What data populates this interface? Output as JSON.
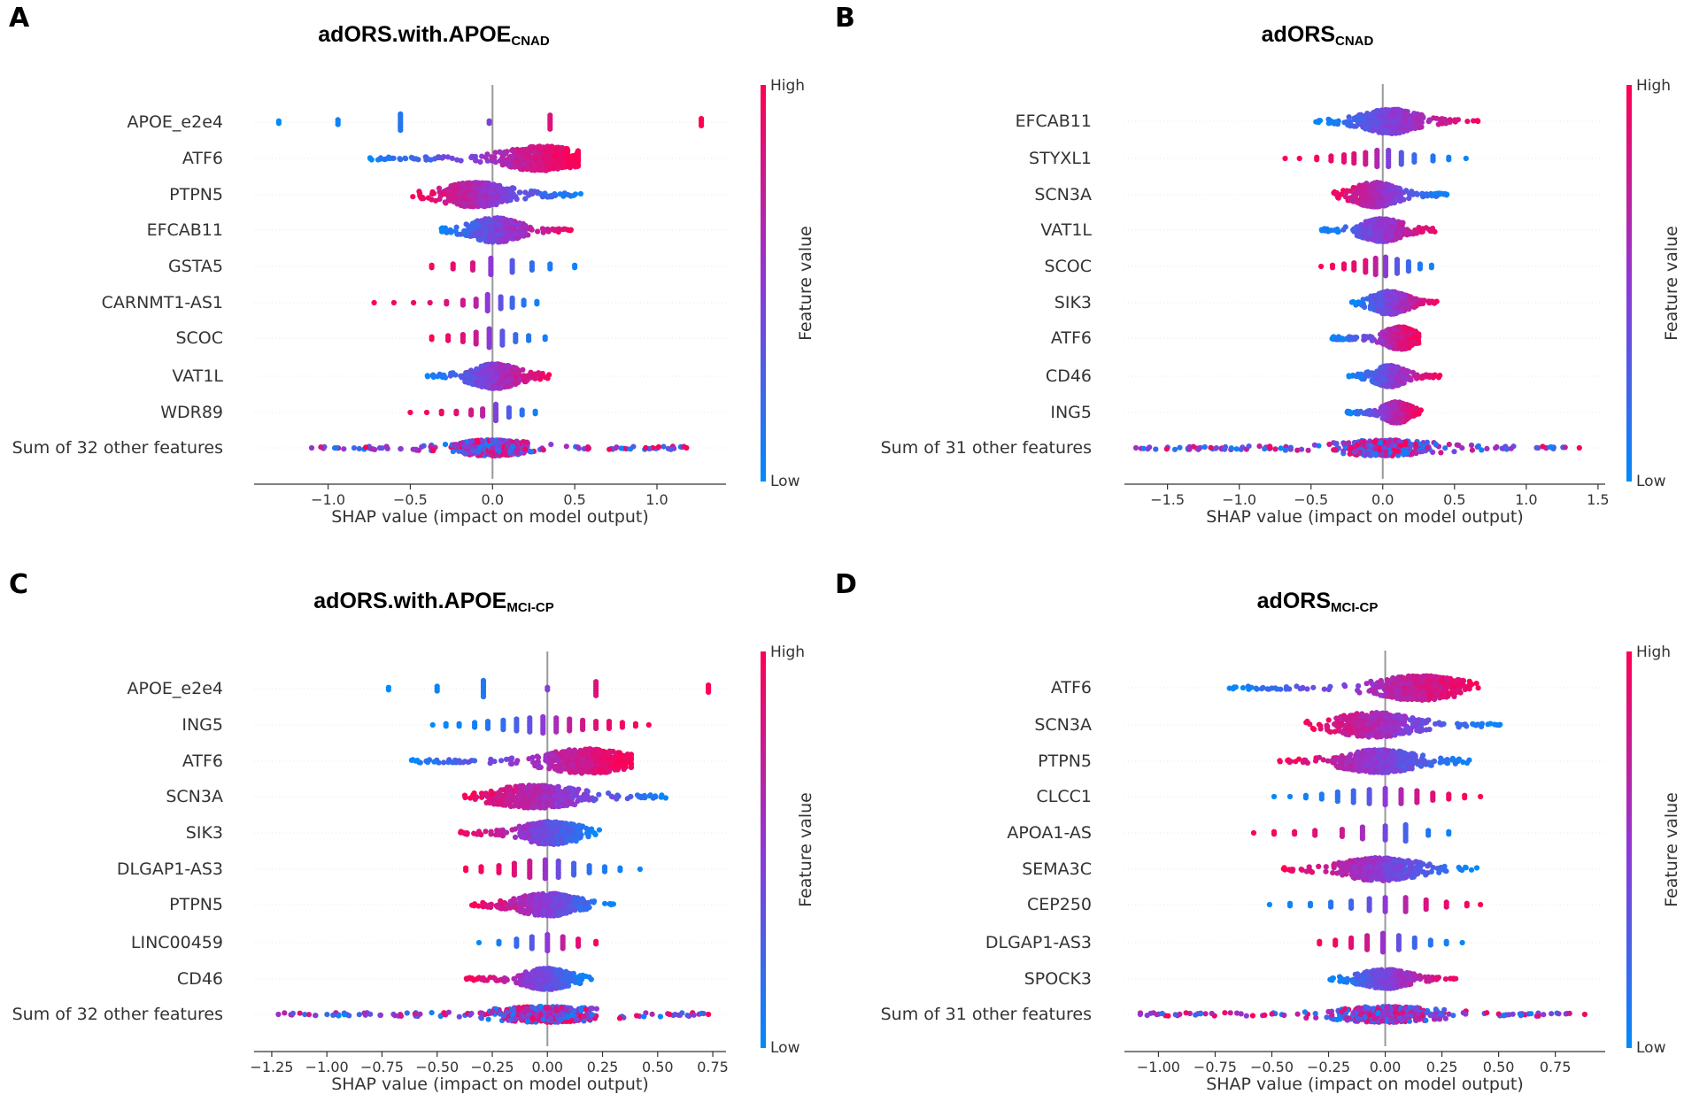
{
  "chart_data": [
    {
      "type": "scatter",
      "panel": "A",
      "title": "adORS.with.APOE",
      "title_subscript": "CNAD",
      "xlabel": "SHAP value (impact on model output)",
      "xlim": [
        -1.45,
        1.42
      ],
      "xticks": [
        -1.0,
        -0.5,
        0.0,
        0.5,
        1.0
      ],
      "xtick_labels": [
        "−1.0",
        "−0.5",
        "0.0",
        "0.5",
        "1.0"
      ],
      "colorbar": {
        "label": "Feature value",
        "high": "High",
        "low": "Low"
      },
      "features": [
        {
          "name": "APOE_e2e4",
          "kind": "discrete",
          "values": [
            -1.3,
            -0.94,
            -0.56,
            -0.02,
            0.35,
            1.27
          ],
          "colors": [
            0.0,
            0.05,
            0.12,
            0.45,
            0.85,
            1.0
          ],
          "heights": [
            2,
            3,
            8,
            2,
            7,
            4
          ]
        },
        {
          "name": "ATF6",
          "kind": "continuous",
          "min": -0.75,
          "max": 0.52,
          "lo_end": "low",
          "peak": 0.3,
          "spread": 0.35,
          "height": 14
        },
        {
          "name": "PTPN5",
          "kind": "continuous",
          "min": -0.49,
          "max": 0.54,
          "lo_end": "high",
          "peak": -0.1,
          "spread": 0.3,
          "height": 14
        },
        {
          "name": "EFCAB11",
          "kind": "continuous",
          "min": -0.33,
          "max": 0.49,
          "lo_end": "low",
          "peak": 0.02,
          "spread": 0.22,
          "height": 14
        },
        {
          "name": "GSTA5",
          "kind": "discrete",
          "values": [
            -0.37,
            -0.24,
            -0.12,
            -0.01,
            0.12,
            0.24,
            0.35,
            0.5
          ],
          "colors": [
            1.0,
            0.92,
            0.82,
            0.5,
            0.3,
            0.18,
            0.1,
            0.05
          ],
          "heights": [
            2,
            3,
            4,
            8,
            6,
            4,
            3,
            2
          ]
        },
        {
          "name": "CARNMT1-AS1",
          "kind": "discrete",
          "values": [
            -0.72,
            -0.6,
            -0.48,
            -0.38,
            -0.28,
            -0.18,
            -0.1,
            -0.03,
            0.05,
            0.12,
            0.19,
            0.27
          ],
          "colors": [
            1.0,
            0.97,
            0.93,
            0.9,
            0.85,
            0.78,
            0.68,
            0.5,
            0.35,
            0.22,
            0.12,
            0.06
          ],
          "heights": [
            1,
            1,
            1,
            1,
            2,
            3,
            4,
            8,
            6,
            5,
            3,
            2
          ]
        },
        {
          "name": "SCOC",
          "kind": "discrete",
          "values": [
            -0.37,
            -0.27,
            -0.18,
            -0.1,
            -0.02,
            0.06,
            0.14,
            0.22,
            0.32
          ],
          "colors": [
            1.0,
            0.93,
            0.86,
            0.76,
            0.5,
            0.32,
            0.2,
            0.12,
            0.06
          ],
          "heights": [
            2,
            3,
            4,
            6,
            9,
            7,
            4,
            3,
            2
          ]
        },
        {
          "name": "VAT1L",
          "kind": "continuous",
          "min": -0.4,
          "max": 0.37,
          "lo_end": "low",
          "peak": 0.02,
          "spread": 0.22,
          "height": 14
        },
        {
          "name": "WDR89",
          "kind": "discrete",
          "values": [
            -0.5,
            -0.4,
            -0.31,
            -0.22,
            -0.13,
            -0.06,
            0.02,
            0.1,
            0.18,
            0.26
          ],
          "colors": [
            1.0,
            0.97,
            0.93,
            0.88,
            0.8,
            0.7,
            0.45,
            0.28,
            0.15,
            0.06
          ],
          "heights": [
            1,
            1,
            2,
            2,
            3,
            4,
            8,
            5,
            3,
            2
          ]
        },
        {
          "name": "Sum of 32 other features",
          "kind": "mixed",
          "min": -1.1,
          "max": 1.18,
          "spread": 0.3,
          "height": 9
        }
      ]
    },
    {
      "type": "scatter",
      "panel": "B",
      "title": "adORS",
      "title_subscript": "CNAD",
      "xlabel": "SHAP value (impact on model output)",
      "xlim": [
        -1.8,
        1.55
      ],
      "xticks": [
        -1.5,
        -1.0,
        -0.5,
        0.0,
        0.5,
        1.0,
        1.5
      ],
      "xtick_labels": [
        "−1.5",
        "−1.0",
        "−0.5",
        "0.0",
        "0.5",
        "1.0",
        "1.5"
      ],
      "colorbar": {
        "label": "Feature value",
        "high": "High",
        "low": "Low"
      },
      "features": [
        {
          "name": "EFCAB11",
          "kind": "continuous",
          "min": -0.48,
          "max": 0.7,
          "lo_end": "low",
          "peak": 0.05,
          "spread": 0.28,
          "height": 14
        },
        {
          "name": "STYXL1",
          "kind": "discrete",
          "values": [
            -0.68,
            -0.58,
            -0.46,
            -0.36,
            -0.27,
            -0.2,
            -0.12,
            -0.04,
            0.04,
            0.13,
            0.22,
            0.35,
            0.46,
            0.58
          ],
          "colors": [
            1.0,
            0.98,
            0.95,
            0.92,
            0.88,
            0.84,
            0.78,
            0.65,
            0.45,
            0.3,
            0.2,
            0.12,
            0.07,
            0.03
          ],
          "heights": [
            1,
            1,
            2,
            3,
            4,
            5,
            6,
            8,
            8,
            6,
            4,
            3,
            2,
            1
          ]
        },
        {
          "name": "SCN3A",
          "kind": "continuous",
          "min": -0.36,
          "max": 0.46,
          "lo_end": "high",
          "peak": -0.05,
          "spread": 0.22,
          "height": 14
        },
        {
          "name": "VAT1L",
          "kind": "continuous",
          "min": -0.43,
          "max": 0.4,
          "lo_end": "low",
          "peak": 0.0,
          "spread": 0.22,
          "height": 13
        },
        {
          "name": "SCOC",
          "kind": "discrete",
          "values": [
            -0.43,
            -0.35,
            -0.27,
            -0.2,
            -0.12,
            -0.05,
            0.02,
            0.1,
            0.18,
            0.26,
            0.34
          ],
          "colors": [
            1.0,
            0.97,
            0.93,
            0.9,
            0.84,
            0.72,
            0.5,
            0.32,
            0.2,
            0.1,
            0.05
          ],
          "heights": [
            1,
            2,
            3,
            4,
            6,
            8,
            9,
            7,
            5,
            3,
            2
          ]
        },
        {
          "name": "SIK3",
          "kind": "continuous",
          "min": -0.23,
          "max": 0.38,
          "lo_end": "low",
          "peak": 0.05,
          "spread": 0.18,
          "height": 13
        },
        {
          "name": "ATF6",
          "kind": "continuous",
          "min": -0.36,
          "max": 0.25,
          "lo_end": "low",
          "peak": 0.12,
          "spread": 0.16,
          "height": 13
        },
        {
          "name": "CD46",
          "kind": "continuous",
          "min": -0.24,
          "max": 0.42,
          "lo_end": "low",
          "peak": 0.05,
          "spread": 0.16,
          "height": 12
        },
        {
          "name": "ING5",
          "kind": "continuous",
          "min": -0.26,
          "max": 0.27,
          "lo_end": "low",
          "peak": 0.1,
          "spread": 0.14,
          "height": 12
        },
        {
          "name": "Sum of 31 other features",
          "kind": "mixed",
          "min": -1.72,
          "max": 1.37,
          "spread": 0.45,
          "height": 9
        }
      ]
    },
    {
      "type": "scatter",
      "panel": "C",
      "title": "adORS.with.APOE",
      "title_subscript": "MCI-CP",
      "xlabel": "SHAP value (impact on model output)",
      "xlim": [
        -1.33,
        0.81
      ],
      "xticks": [
        -1.25,
        -1.0,
        -0.75,
        -0.5,
        -0.25,
        0.0,
        0.25,
        0.5,
        0.75
      ],
      "xtick_labels": [
        "−1.25",
        "−1.00",
        "−0.75",
        "−0.50",
        "−0.25",
        "0.00",
        "0.25",
        "0.50",
        "0.75"
      ],
      "colorbar": {
        "label": "Feature value",
        "high": "High",
        "low": "Low"
      },
      "features": [
        {
          "name": "APOE_e2e4",
          "kind": "discrete",
          "values": [
            -0.72,
            -0.5,
            -0.29,
            0.0,
            0.22,
            0.73
          ],
          "colors": [
            0.0,
            0.05,
            0.12,
            0.45,
            0.85,
            1.0
          ],
          "heights": [
            2,
            3,
            8,
            2,
            7,
            4
          ]
        },
        {
          "name": "ING5",
          "kind": "discrete",
          "values": [
            -0.52,
            -0.46,
            -0.4,
            -0.33,
            -0.27,
            -0.2,
            -0.14,
            -0.08,
            -0.02,
            0.04,
            0.1,
            0.16,
            0.22,
            0.28,
            0.34,
            0.4,
            0.46
          ],
          "colors": [
            0.0,
            0.02,
            0.05,
            0.08,
            0.12,
            0.18,
            0.25,
            0.35,
            0.5,
            0.62,
            0.72,
            0.8,
            0.86,
            0.9,
            0.94,
            0.97,
            1.0
          ],
          "heights": [
            1,
            2,
            2,
            3,
            4,
            5,
            6,
            7,
            8,
            7,
            6,
            5,
            4,
            4,
            3,
            2,
            1
          ]
        },
        {
          "name": "ATF6",
          "kind": "continuous",
          "min": -0.64,
          "max": 0.38,
          "lo_end": "low",
          "peak": 0.18,
          "spread": 0.28,
          "height": 14
        },
        {
          "name": "SCN3A",
          "kind": "continuous",
          "min": -0.38,
          "max": 0.58,
          "lo_end": "high",
          "peak": -0.05,
          "spread": 0.3,
          "height": 13
        },
        {
          "name": "SIK3",
          "kind": "continuous",
          "min": -0.41,
          "max": 0.24,
          "lo_end": "high",
          "peak": 0.02,
          "spread": 0.2,
          "height": 13
        },
        {
          "name": "DLGAP1-AS3",
          "kind": "discrete",
          "values": [
            -0.37,
            -0.3,
            -0.22,
            -0.15,
            -0.08,
            -0.01,
            0.05,
            0.12,
            0.19,
            0.26,
            0.33,
            0.42
          ],
          "colors": [
            1.0,
            0.96,
            0.92,
            0.86,
            0.78,
            0.55,
            0.38,
            0.25,
            0.15,
            0.1,
            0.06,
            0.03
          ],
          "heights": [
            2,
            3,
            4,
            6,
            8,
            9,
            8,
            6,
            4,
            3,
            2,
            1
          ]
        },
        {
          "name": "PTPN5",
          "kind": "continuous",
          "min": -0.35,
          "max": 0.31,
          "lo_end": "high",
          "peak": 0.0,
          "spread": 0.2,
          "height": 13
        },
        {
          "name": "LINC00459",
          "kind": "discrete",
          "values": [
            -0.31,
            -0.22,
            -0.14,
            -0.07,
            0.0,
            0.07,
            0.14,
            0.22
          ],
          "colors": [
            0.0,
            0.08,
            0.18,
            0.3,
            0.5,
            0.72,
            0.88,
            1.0
          ],
          "heights": [
            1,
            2,
            4,
            6,
            8,
            6,
            4,
            2
          ]
        },
        {
          "name": "CD46",
          "kind": "continuous",
          "min": -0.37,
          "max": 0.21,
          "lo_end": "high",
          "peak": 0.0,
          "spread": 0.16,
          "height": 12
        },
        {
          "name": "Sum of 32 other features",
          "kind": "mixed",
          "min": -1.22,
          "max": 0.73,
          "spread": 0.32,
          "height": 9
        }
      ]
    },
    {
      "type": "scatter",
      "panel": "D",
      "title": "adORS",
      "title_subscript": "MCI-CP",
      "xlabel": "SHAP value (impact on model output)",
      "xlim": [
        -1.15,
        0.97
      ],
      "xticks": [
        -1.0,
        -0.75,
        -0.5,
        -0.25,
        0.0,
        0.25,
        0.5,
        0.75
      ],
      "xtick_labels": [
        "−1.00",
        "−0.75",
        "−0.50",
        "−0.25",
        "0.00",
        "0.25",
        "0.50",
        "0.75"
      ],
      "colorbar": {
        "label": "Feature value",
        "high": "High",
        "low": "Low"
      },
      "features": [
        {
          "name": "ATF6",
          "kind": "continuous",
          "min": -0.7,
          "max": 0.41,
          "lo_end": "low",
          "peak": 0.15,
          "spread": 0.28,
          "height": 14
        },
        {
          "name": "SCN3A",
          "kind": "continuous",
          "min": -0.37,
          "max": 0.52,
          "lo_end": "high",
          "peak": -0.05,
          "spread": 0.26,
          "height": 14
        },
        {
          "name": "PTPN5",
          "kind": "continuous",
          "min": -0.47,
          "max": 0.4,
          "lo_end": "high",
          "peak": -0.02,
          "spread": 0.25,
          "height": 13
        },
        {
          "name": "CLCC1",
          "kind": "discrete",
          "values": [
            -0.49,
            -0.42,
            -0.35,
            -0.28,
            -0.21,
            -0.14,
            -0.07,
            0.0,
            0.07,
            0.14,
            0.21,
            0.28,
            0.35,
            0.42
          ],
          "colors": [
            0.0,
            0.03,
            0.06,
            0.1,
            0.15,
            0.22,
            0.32,
            0.5,
            0.65,
            0.78,
            0.86,
            0.92,
            0.96,
            1.0
          ],
          "heights": [
            1,
            1,
            2,
            3,
            5,
            6,
            7,
            8,
            7,
            6,
            4,
            3,
            2,
            1
          ]
        },
        {
          "name": "APOA1-AS",
          "kind": "discrete",
          "values": [
            -0.58,
            -0.49,
            -0.4,
            -0.31,
            -0.19,
            -0.1,
            0.0,
            0.09,
            0.19,
            0.28
          ],
          "colors": [
            1.0,
            0.96,
            0.92,
            0.86,
            0.76,
            0.6,
            0.4,
            0.25,
            0.12,
            0.05
          ],
          "heights": [
            1,
            2,
            2,
            3,
            4,
            6,
            7,
            8,
            3,
            2
          ]
        },
        {
          "name": "SEMA3C",
          "kind": "continuous",
          "min": -0.47,
          "max": 0.41,
          "lo_end": "high",
          "peak": -0.02,
          "spread": 0.25,
          "height": 13
        },
        {
          "name": "CEP250",
          "kind": "discrete",
          "values": [
            -0.51,
            -0.42,
            -0.33,
            -0.24,
            -0.15,
            -0.07,
            0.0,
            0.09,
            0.18,
            0.27,
            0.36,
            0.42
          ],
          "colors": [
            0.0,
            0.04,
            0.08,
            0.14,
            0.22,
            0.34,
            0.5,
            0.68,
            0.82,
            0.9,
            0.96,
            1.0
          ],
          "heights": [
            1,
            2,
            2,
            3,
            4,
            6,
            7,
            7,
            5,
            3,
            2,
            1
          ]
        },
        {
          "name": "DLGAP1-AS3",
          "kind": "discrete",
          "values": [
            -0.29,
            -0.22,
            -0.15,
            -0.08,
            -0.01,
            0.06,
            0.13,
            0.2,
            0.27,
            0.34
          ],
          "colors": [
            1.0,
            0.95,
            0.88,
            0.78,
            0.55,
            0.35,
            0.22,
            0.13,
            0.07,
            0.03
          ],
          "heights": [
            2,
            3,
            5,
            7,
            9,
            7,
            5,
            3,
            2,
            1
          ]
        },
        {
          "name": "SPOCK3",
          "kind": "continuous",
          "min": -0.25,
          "max": 0.32,
          "lo_end": "low",
          "peak": 0.0,
          "spread": 0.16,
          "height": 11
        },
        {
          "name": "Sum of 31 other features",
          "kind": "mixed",
          "min": -1.08,
          "max": 0.88,
          "spread": 0.3,
          "height": 9
        }
      ]
    }
  ]
}
